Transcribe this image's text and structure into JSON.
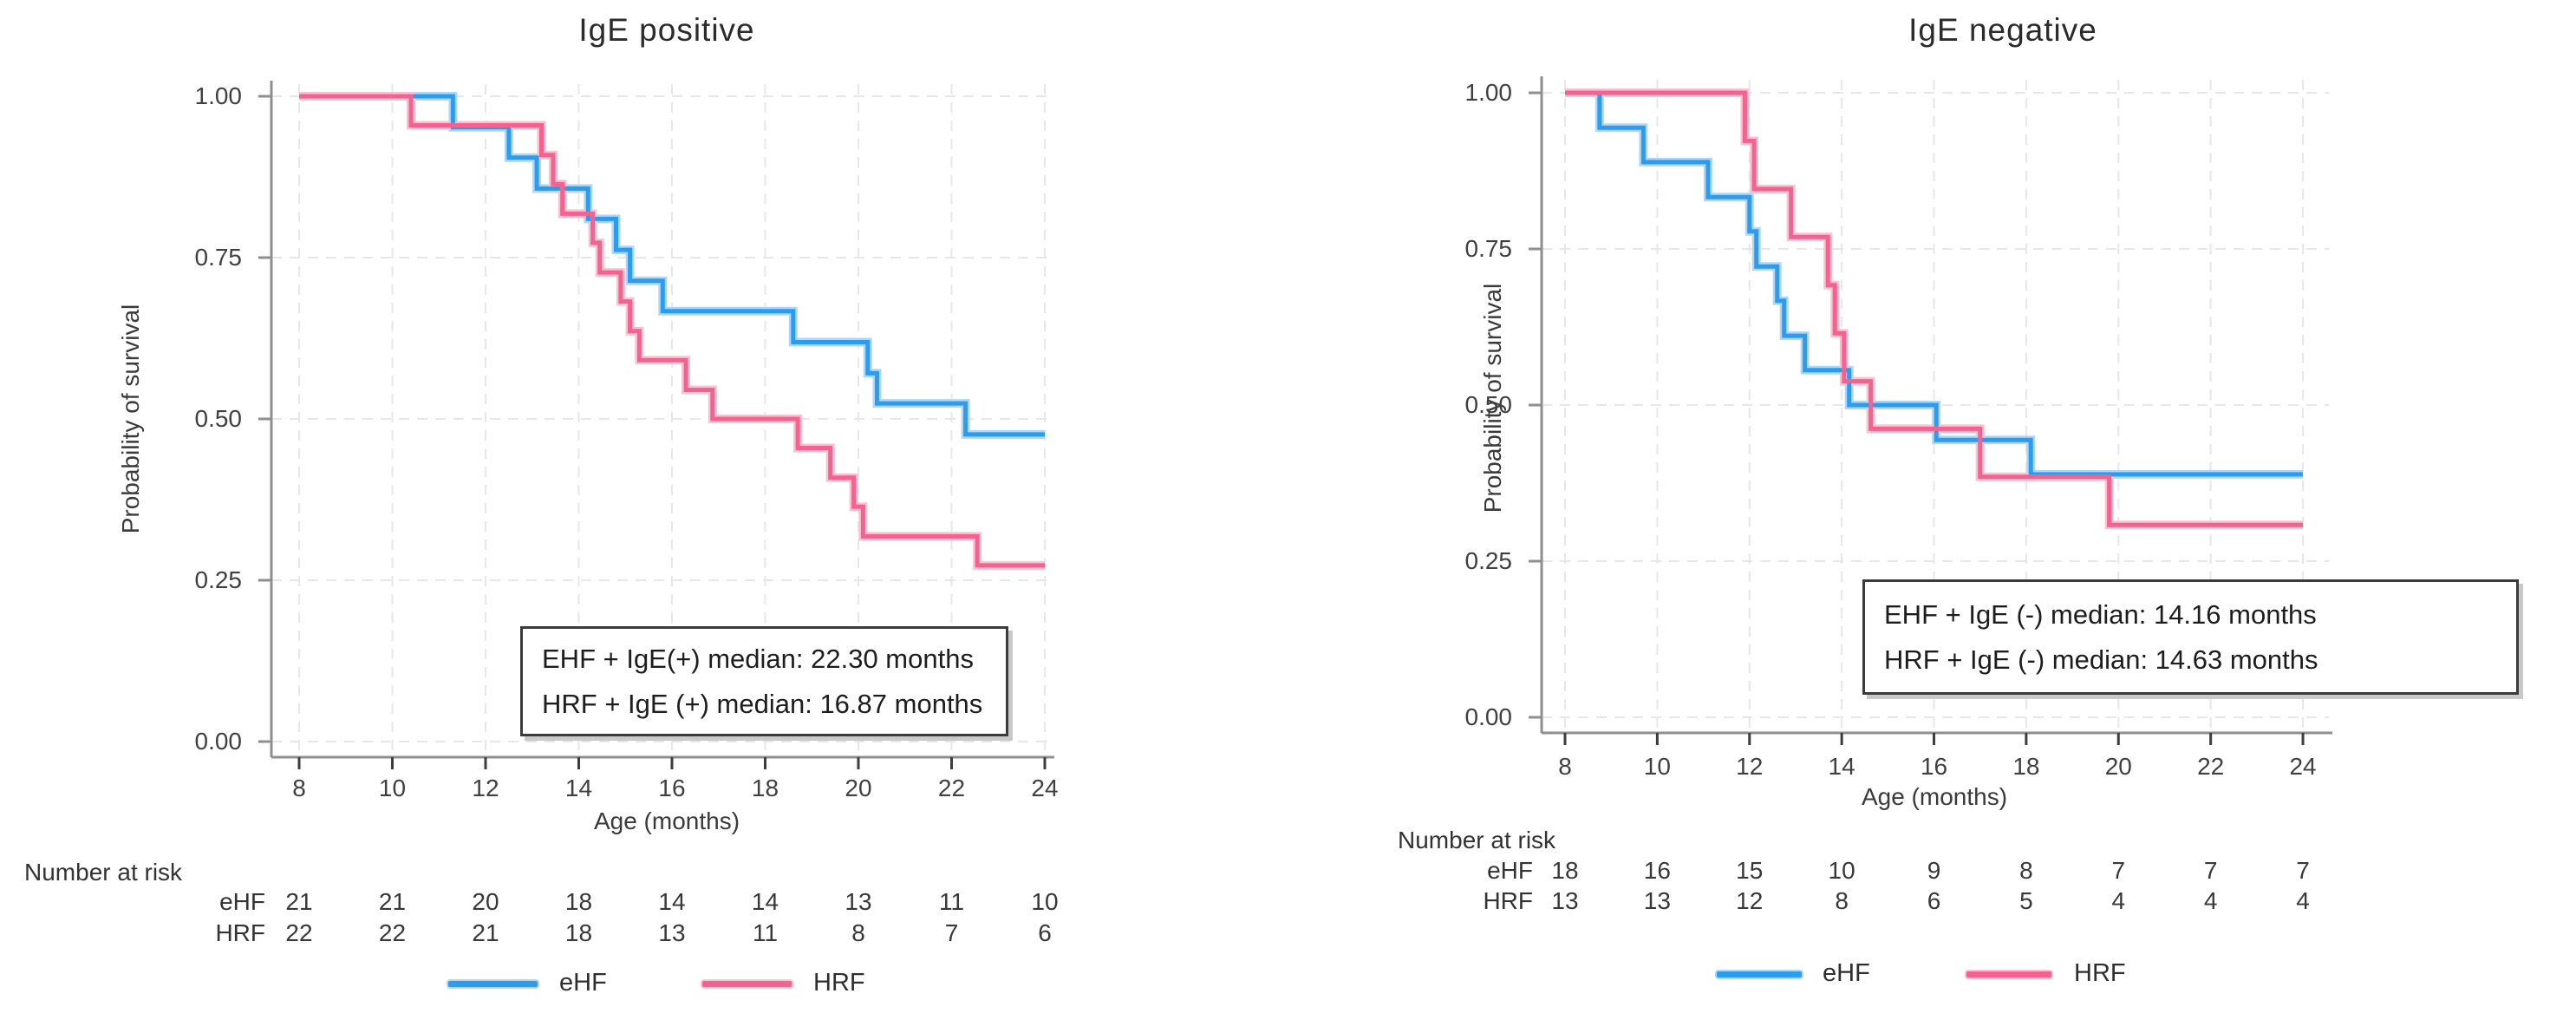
{
  "figure": {
    "background": "#ffffff",
    "axis_color": "#8f8f8f",
    "grid_color": "#e7e7e7",
    "text_color": "#2f2f2f"
  },
  "chart_data": [
    {
      "type": "line",
      "subtype": "kaplan-meier-step",
      "title": "IgE positive",
      "xlabel": "Age (months)",
      "ylabel": "Probability of survival",
      "xticks": [
        8,
        10,
        12,
        14,
        16,
        18,
        20,
        22,
        24
      ],
      "yticklabels": [
        "1.00",
        "0.75",
        "0.50",
        "0.25",
        "0.00"
      ],
      "yticks": [
        1.0,
        0.75,
        0.5,
        0.25,
        0.0
      ],
      "xlim": [
        8,
        24
      ],
      "ylim": [
        0,
        1
      ],
      "grid": true,
      "series": [
        {
          "name": "eHF",
          "color": "#2E9CEC",
          "halo": "#AED7F8",
          "steps": [
            [
              8,
              1.0
            ],
            [
              11.3,
              0.952
            ],
            [
              12.5,
              0.905
            ],
            [
              13.1,
              0.857
            ],
            [
              14.2,
              0.81
            ],
            [
              14.8,
              0.762
            ],
            [
              15.1,
              0.714
            ],
            [
              15.8,
              0.667
            ],
            [
              18.6,
              0.619
            ],
            [
              20.2,
              0.571
            ],
            [
              20.4,
              0.524
            ],
            [
              22.3,
              0.476
            ]
          ],
          "end_x": 24
        },
        {
          "name": "HRF",
          "color": "#F2638F",
          "halo": "#FAC2D4",
          "steps": [
            [
              8,
              1.0
            ],
            [
              10.4,
              0.955
            ],
            [
              13.2,
              0.909
            ],
            [
              13.45,
              0.864
            ],
            [
              13.65,
              0.818
            ],
            [
              14.3,
              0.773
            ],
            [
              14.45,
              0.727
            ],
            [
              14.9,
              0.682
            ],
            [
              15.1,
              0.636
            ],
            [
              15.3,
              0.591
            ],
            [
              16.3,
              0.545
            ],
            [
              16.87,
              0.5
            ],
            [
              18.7,
              0.455
            ],
            [
              19.4,
              0.409
            ],
            [
              19.9,
              0.364
            ],
            [
              20.1,
              0.318
            ],
            [
              22.55,
              0.273
            ]
          ],
          "end_x": 24
        }
      ],
      "annotation": [
        "EHF + IgE(+) median: 22.30 months",
        "HRF + IgE (+) median: 16.87 months"
      ],
      "number_at_risk": {
        "header": "Number at risk",
        "rows": [
          {
            "label": "eHF",
            "values": [
              "21",
              "21",
              "20",
              "18",
              "14",
              "14",
              "13",
              "11",
              "10"
            ]
          },
          {
            "label": "HRF",
            "values": [
              "22",
              "22",
              "21",
              "18",
              "13",
              "11",
              "8",
              "7",
              "6"
            ]
          }
        ]
      },
      "legend": {
        "position": "bottom",
        "items": [
          {
            "label": "eHF"
          },
          {
            "label": "HRF"
          }
        ]
      }
    },
    {
      "type": "line",
      "subtype": "kaplan-meier-step",
      "title": "IgE negative",
      "xlabel": "Age (months)",
      "ylabel": "Probability of survival",
      "xticks": [
        8,
        10,
        12,
        14,
        16,
        18,
        20,
        22,
        24
      ],
      "yticklabels": [
        "1.00",
        "0.75",
        "0.50",
        "0.25",
        "0.00"
      ],
      "yticks": [
        1.0,
        0.75,
        0.5,
        0.25,
        0.0
      ],
      "xlim": [
        8,
        24
      ],
      "ylim": [
        0,
        1
      ],
      "grid": true,
      "series": [
        {
          "name": "eHF",
          "color": "#2E9CEC",
          "halo": "#AED7F8",
          "steps": [
            [
              8,
              1.0
            ],
            [
              8.75,
              0.944
            ],
            [
              9.7,
              0.889
            ],
            [
              11.1,
              0.833
            ],
            [
              12.0,
              0.778
            ],
            [
              12.15,
              0.722
            ],
            [
              12.6,
              0.667
            ],
            [
              12.75,
              0.611
            ],
            [
              13.2,
              0.556
            ],
            [
              14.16,
              0.5
            ],
            [
              16.05,
              0.444
            ],
            [
              18.1,
              0.389
            ]
          ],
          "end_x": 24
        },
        {
          "name": "HRF",
          "color": "#F2638F",
          "halo": "#FAC2D4",
          "steps": [
            [
              8,
              1.0
            ],
            [
              11.9,
              0.923
            ],
            [
              12.1,
              0.846
            ],
            [
              12.9,
              0.769
            ],
            [
              13.7,
              0.692
            ],
            [
              13.85,
              0.615
            ],
            [
              14.05,
              0.538
            ],
            [
              14.63,
              0.462
            ],
            [
              17.0,
              0.385
            ],
            [
              19.8,
              0.308
            ]
          ],
          "end_x": 24
        }
      ],
      "annotation": [
        "EHF + IgE (-) median: 14.16 months",
        "HRF + IgE (-) median: 14.63 months"
      ],
      "number_at_risk": {
        "header": "Number at risk",
        "rows": [
          {
            "label": "eHF",
            "values": [
              "18",
              "16",
              "15",
              "10",
              "9",
              "8",
              "7",
              "7",
              "7"
            ]
          },
          {
            "label": "HRF",
            "values": [
              "13",
              "13",
              "12",
              "8",
              "6",
              "5",
              "4",
              "4",
              "4"
            ]
          }
        ]
      },
      "legend": {
        "position": "bottom",
        "items": [
          {
            "label": "eHF"
          },
          {
            "label": "HRF"
          }
        ]
      }
    }
  ]
}
